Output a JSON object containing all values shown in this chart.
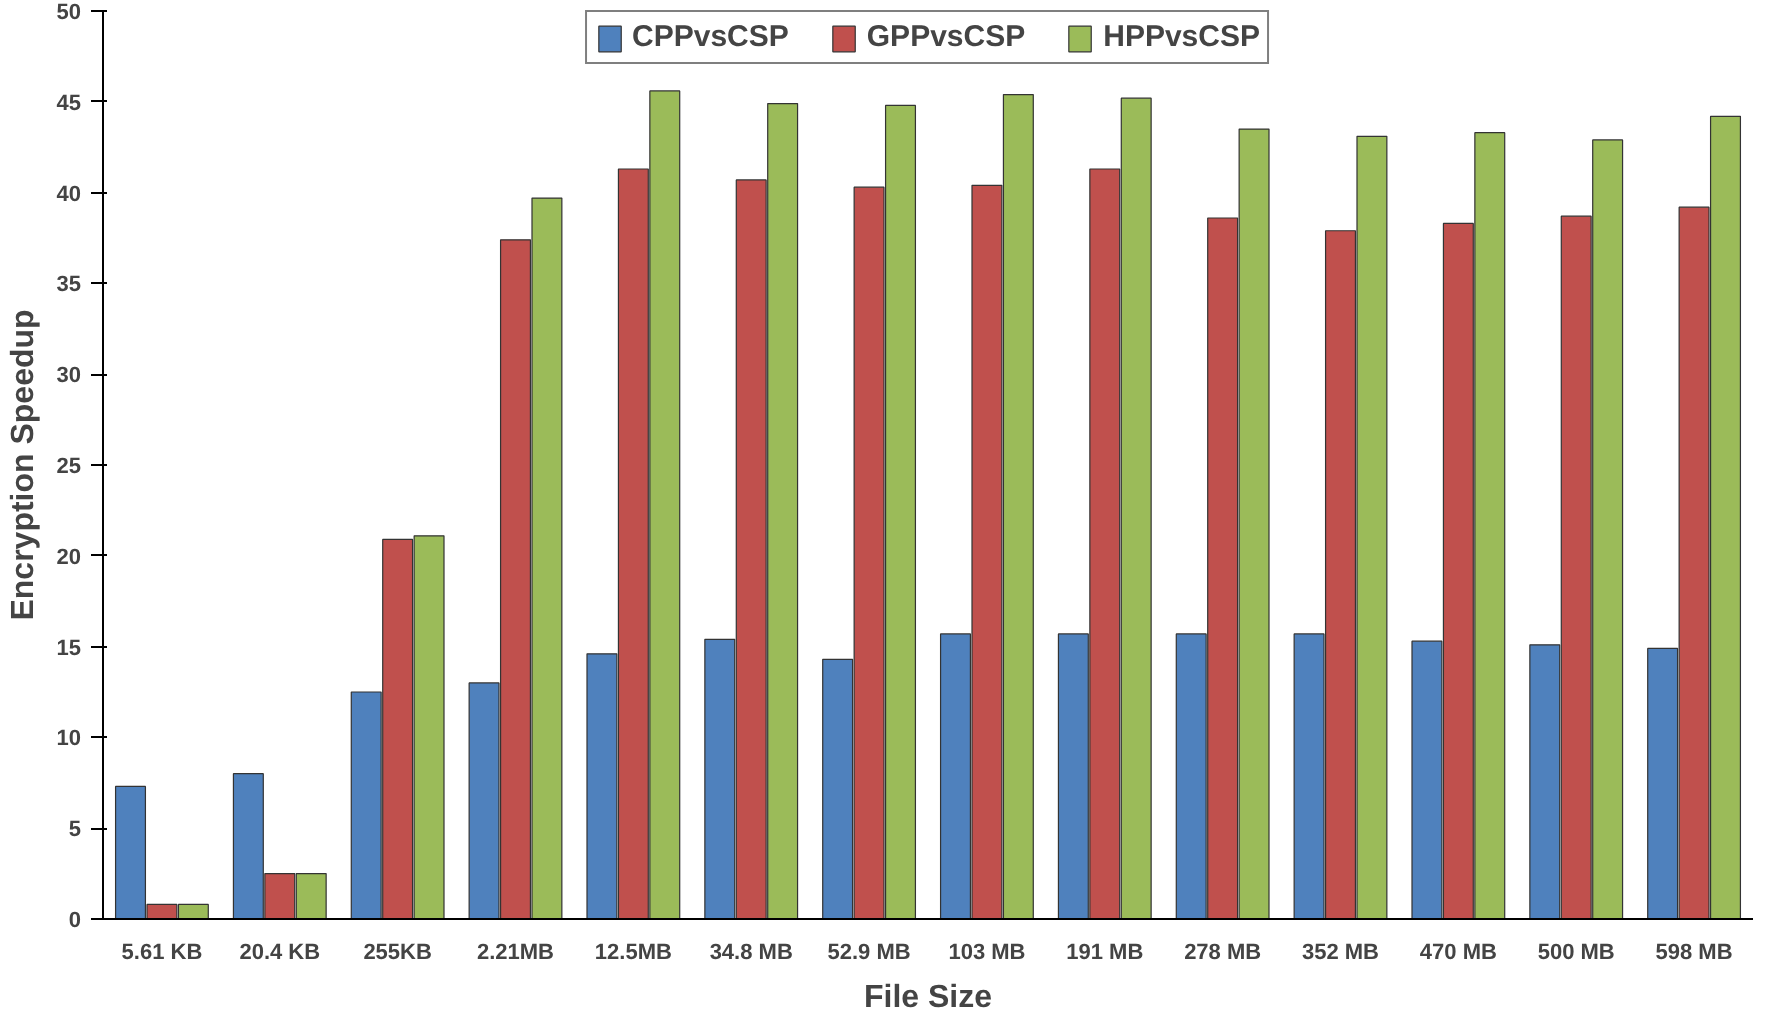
{
  "chart_data": {
    "type": "bar",
    "xlabel": "File Size",
    "ylabel": "Encryption Speedup",
    "categories": [
      "5.61 KB",
      "20.4 KB",
      "255KB",
      "2.21MB",
      "12.5MB",
      "34.8 MB",
      "52.9 MB",
      "103 MB",
      "191 MB",
      "278 MB",
      "352 MB",
      "470 MB",
      "500 MB",
      "598 MB"
    ],
    "series": [
      {
        "name": "CPPvsCSP",
        "color": "#4f81bd",
        "values": [
          7.3,
          8.0,
          12.5,
          13.0,
          14.6,
          15.4,
          14.3,
          15.7,
          15.7,
          15.7,
          15.7,
          15.3,
          15.1,
          14.9
        ]
      },
      {
        "name": "GPPvsCSP",
        "color": "#c0504d",
        "values": [
          0.8,
          2.5,
          20.9,
          37.4,
          41.3,
          40.7,
          40.3,
          40.4,
          41.3,
          38.6,
          37.9,
          38.3,
          38.7,
          39.2
        ]
      },
      {
        "name": "HPPvsCSP",
        "color": "#9bbb59",
        "values": [
          0.8,
          2.5,
          21.1,
          39.7,
          45.6,
          44.9,
          44.8,
          45.4,
          45.2,
          43.5,
          43.1,
          43.3,
          42.9,
          44.2
        ]
      }
    ],
    "ylim": [
      0,
      50
    ],
    "yticks": [
      0,
      5,
      10,
      15,
      20,
      25,
      30,
      35,
      40,
      45,
      50
    ],
    "grid": false,
    "legend": "top"
  }
}
